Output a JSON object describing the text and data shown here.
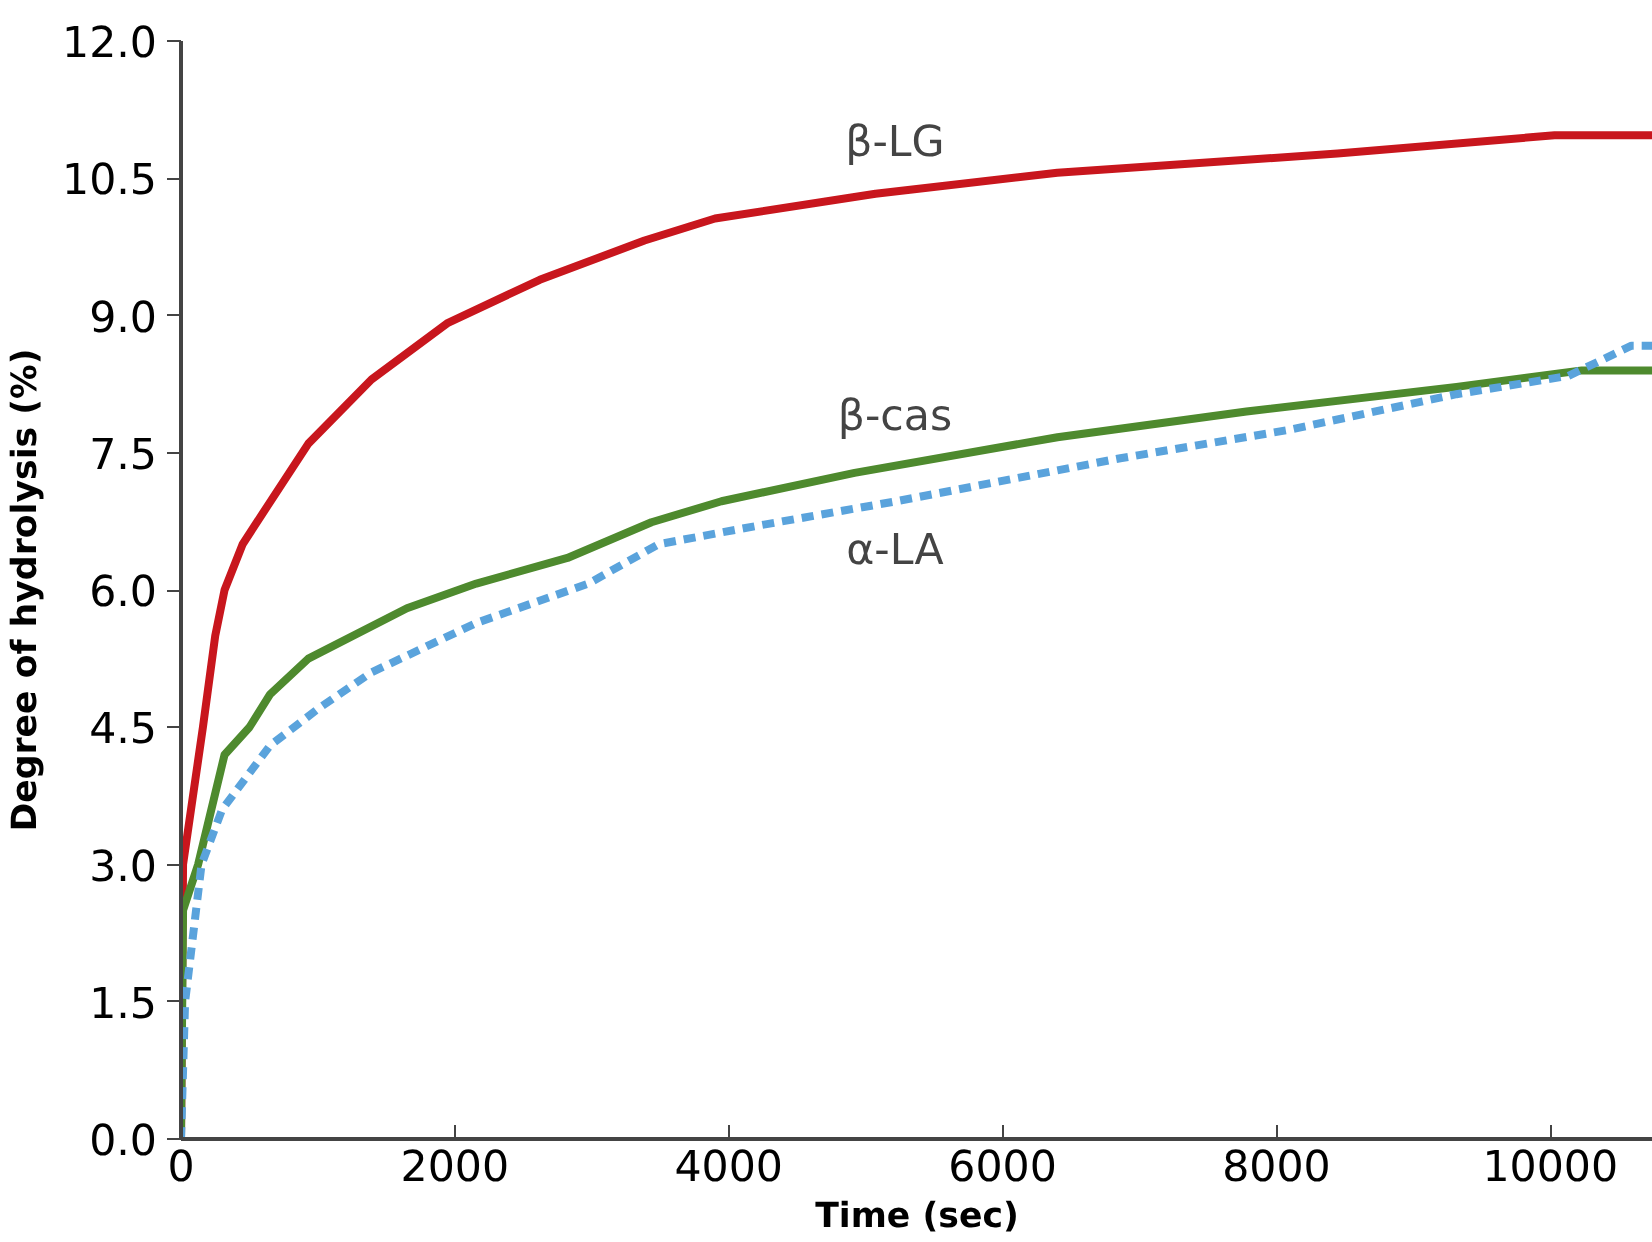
{
  "chart_data": {
    "type": "line",
    "xlabel": "Time (sec)",
    "ylabel": "Degree of hydrolysis (%)",
    "xlim": [
      0,
      10750
    ],
    "ylim": [
      0,
      12
    ],
    "xticks": [
      0,
      2000,
      4000,
      6000,
      8000,
      10000
    ],
    "yticks": [
      {
        "value": 0,
        "label": "0.0"
      },
      {
        "value": 1.5,
        "label": "1.5"
      },
      {
        "value": 3,
        "label": "3.0"
      },
      {
        "value": 4.5,
        "label": "4.5"
      },
      {
        "value": 6,
        "label": "6.0"
      },
      {
        "value": 7.5,
        "label": "7.5"
      },
      {
        "value": 9,
        "label": "9.0"
      },
      {
        "value": 10.5,
        "label": "10.5"
      },
      {
        "value": 12,
        "label": "12.0"
      }
    ],
    "grid": false,
    "legend": false,
    "marker": "none",
    "series": [
      {
        "name": "β-LG",
        "color": "#c8161d",
        "line_style": "solid",
        "x": [
          0,
          15,
          160,
          250,
          318,
          450,
          624,
          930,
          1391,
          1950,
          2620,
          3385,
          3900,
          5072,
          6400,
          8446,
          10031,
          10750
        ],
        "values": [
          0,
          3.0,
          4.5,
          5.5,
          6.0,
          6.5,
          6.9,
          7.6,
          8.3,
          8.92,
          9.39,
          9.82,
          10.06,
          10.33,
          10.56,
          10.77,
          10.97,
          10.97
        ]
      },
      {
        "name": "β-cas",
        "color": "#4e8a2e",
        "line_style": "solid",
        "x": [
          0,
          15,
          125,
          318,
          500,
          650,
          930,
          1650,
          2157,
          2822,
          3436,
          3947,
          4919,
          6401,
          7781,
          9315,
          10230,
          10750
        ],
        "values": [
          0,
          2.5,
          3.0,
          4.2,
          4.5,
          4.86,
          5.25,
          5.8,
          6.07,
          6.35,
          6.74,
          6.97,
          7.28,
          7.67,
          7.95,
          8.22,
          8.4,
          8.4
        ]
      },
      {
        "name": "α-LA",
        "color": "#5aa3dc",
        "line_style": "dashed",
        "x": [
          0,
          30,
          150,
          300,
          650,
          1000,
          1391,
          2157,
          2975,
          3487,
          4202,
          5225,
          6860,
          8090,
          9315,
          10133,
          10593,
          10750
        ],
        "values": [
          0,
          1.5,
          3.0,
          3.6,
          4.3,
          4.7,
          5.1,
          5.64,
          6.07,
          6.5,
          6.7,
          6.97,
          7.44,
          7.75,
          8.14,
          8.34,
          8.67,
          8.67
        ]
      }
    ]
  }
}
